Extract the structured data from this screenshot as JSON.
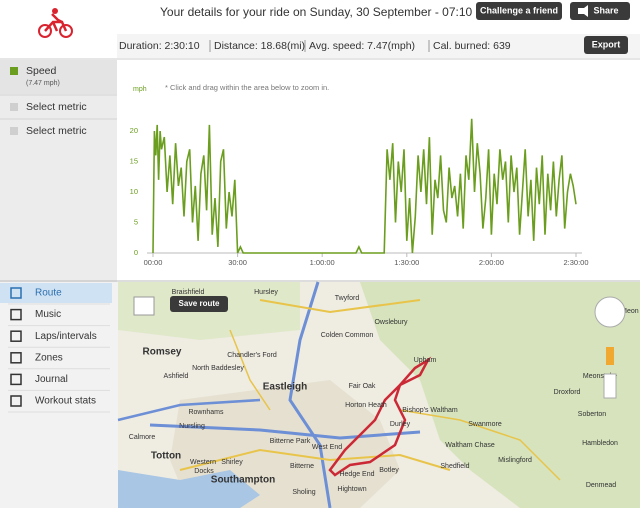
{
  "header": {
    "title": "Your details for your ride on Sunday, 30 September - 07:10",
    "buttons": [
      "Challenge a friend",
      "Share"
    ]
  },
  "stats": {
    "items": [
      "Duration: 2:30:10",
      "Distance: 18.68(mi)",
      "Avg. speed: 7.47(mph)",
      "Cal. burned: 639"
    ],
    "export": "Export"
  },
  "metrics": {
    "speed_detail": "(7.47 mph)",
    "others": [
      "Select metric",
      "Select metric"
    ]
  },
  "chart_data": {
    "type": "line",
    "y_label": "mph",
    "note": "* Click and drag within the area below to zoom in.",
    "x": [
      0,
      0.5,
      1,
      1.5,
      2,
      2.5,
      3,
      4,
      5,
      6,
      7,
      8,
      9,
      10,
      11,
      12,
      13,
      14,
      15,
      16,
      17,
      18,
      19,
      20,
      21,
      22,
      23,
      24,
      25,
      26,
      27,
      28,
      29,
      30,
      31,
      32,
      40,
      50,
      60,
      72,
      73,
      74,
      82,
      83,
      84,
      85,
      86,
      87,
      88,
      89,
      90,
      91,
      92,
      93,
      94,
      95,
      96,
      97,
      98,
      99,
      100,
      101,
      102,
      103,
      104,
      105,
      106,
      107,
      108,
      109,
      110,
      111,
      112,
      113,
      114,
      115,
      116,
      117,
      118,
      119,
      120,
      121,
      122,
      123,
      124,
      125,
      126,
      127,
      128,
      129,
      130,
      131,
      132,
      133,
      134,
      135,
      136,
      137,
      138,
      139,
      140,
      141,
      142,
      143,
      144,
      145,
      146,
      147,
      148,
      149,
      150
    ],
    "series": [
      {
        "name": "Speed",
        "color": "#6b9e1f",
        "values": [
          0,
          20,
          16,
          21,
          12,
          20,
          17,
          19,
          10,
          16,
          8,
          18,
          11,
          14,
          6,
          15,
          17,
          5,
          11,
          2,
          13,
          16,
          7,
          21,
          3,
          9,
          1,
          15,
          17,
          4,
          10,
          6,
          12,
          0,
          1,
          0,
          0,
          0,
          0,
          0,
          1,
          0,
          0,
          17,
          12,
          18,
          5,
          15,
          10,
          17,
          2,
          9,
          0,
          6,
          16,
          10,
          17,
          8,
          19,
          3,
          12,
          9,
          16,
          7,
          5,
          14,
          9,
          11,
          6,
          13,
          4,
          16,
          12,
          22,
          10,
          18,
          13,
          4,
          9,
          17,
          3,
          13,
          8,
          17,
          12,
          15,
          5,
          16,
          10,
          14,
          3,
          10,
          17,
          6,
          12,
          2,
          14,
          8,
          16,
          3,
          13,
          7,
          15,
          6,
          12,
          16,
          4,
          10,
          13,
          11,
          8
        ]
      }
    ],
    "xlim": [
      0,
      150
    ],
    "xticks": [
      {
        "value": 0,
        "label": "00:00"
      },
      {
        "value": 30,
        "label": "30:00"
      },
      {
        "value": 60,
        "label": "1:00:00"
      },
      {
        "value": 90,
        "label": "1:30:00"
      },
      {
        "value": 120,
        "label": "2:00:00"
      },
      {
        "value": 150,
        "label": "2:30:00"
      }
    ],
    "ylim": [
      0,
      25
    ],
    "yticks": [
      0,
      5,
      10,
      15,
      20
    ]
  },
  "nav": [
    "Route",
    "Music",
    "Laps/intervals",
    "Zones",
    "Journal",
    "Workout stats"
  ],
  "map": {
    "button": "Save route",
    "labels": [
      "Hursley",
      "Twyford",
      "Braishfield",
      "Owslebury",
      "Colden Common",
      "Romsey",
      "Chandler's Ford",
      "North Baddesley",
      "Upham",
      "Ashfield",
      "Eastleigh",
      "Fair Oak",
      "Horton Heath",
      "Bishop's Waltham",
      "Meonstoke",
      "Droxford",
      "Swanmore",
      "Soberton",
      "Durley",
      "Rownhams",
      "Nursling",
      "Waltham Chase",
      "Hambledon",
      "Calmore",
      "Bitterne Park",
      "West End",
      "Totton",
      "Western",
      "Shirley",
      "Botley",
      "Shedfield",
      "Mislingford",
      "Docks",
      "Bitterne",
      "Hedge End",
      "Southampton",
      "Sholing",
      "Hightown",
      "Denmead",
      "West Meon"
    ]
  }
}
